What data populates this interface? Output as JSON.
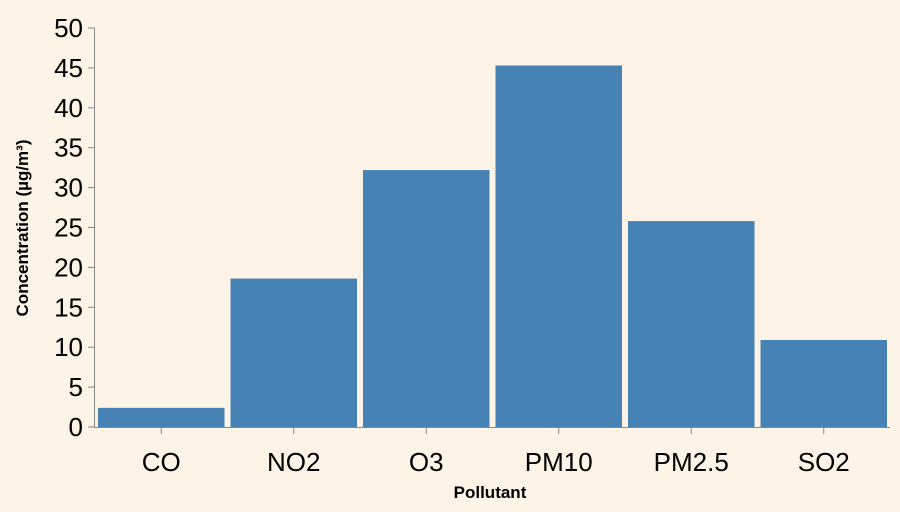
{
  "chart_data": {
    "type": "bar",
    "categories": [
      "CO",
      "NO2",
      "O3",
      "PM10",
      "PM2.5",
      "SO2"
    ],
    "values": [
      2.4,
      18.6,
      32.2,
      45.3,
      25.8,
      10.9
    ],
    "xlabel": "Pollutant",
    "ylabel": "Concentration (µg/m³)",
    "ylim": [
      0,
      50
    ],
    "yticks": [
      "0",
      "5",
      "10",
      "15",
      "20",
      "25",
      "30",
      "35",
      "40",
      "45",
      "50"
    ],
    "bar_color": "#4682b4",
    "grid": false,
    "legend": "none"
  },
  "colors": {
    "background": "#fdf3e6",
    "axis": "#888888"
  }
}
